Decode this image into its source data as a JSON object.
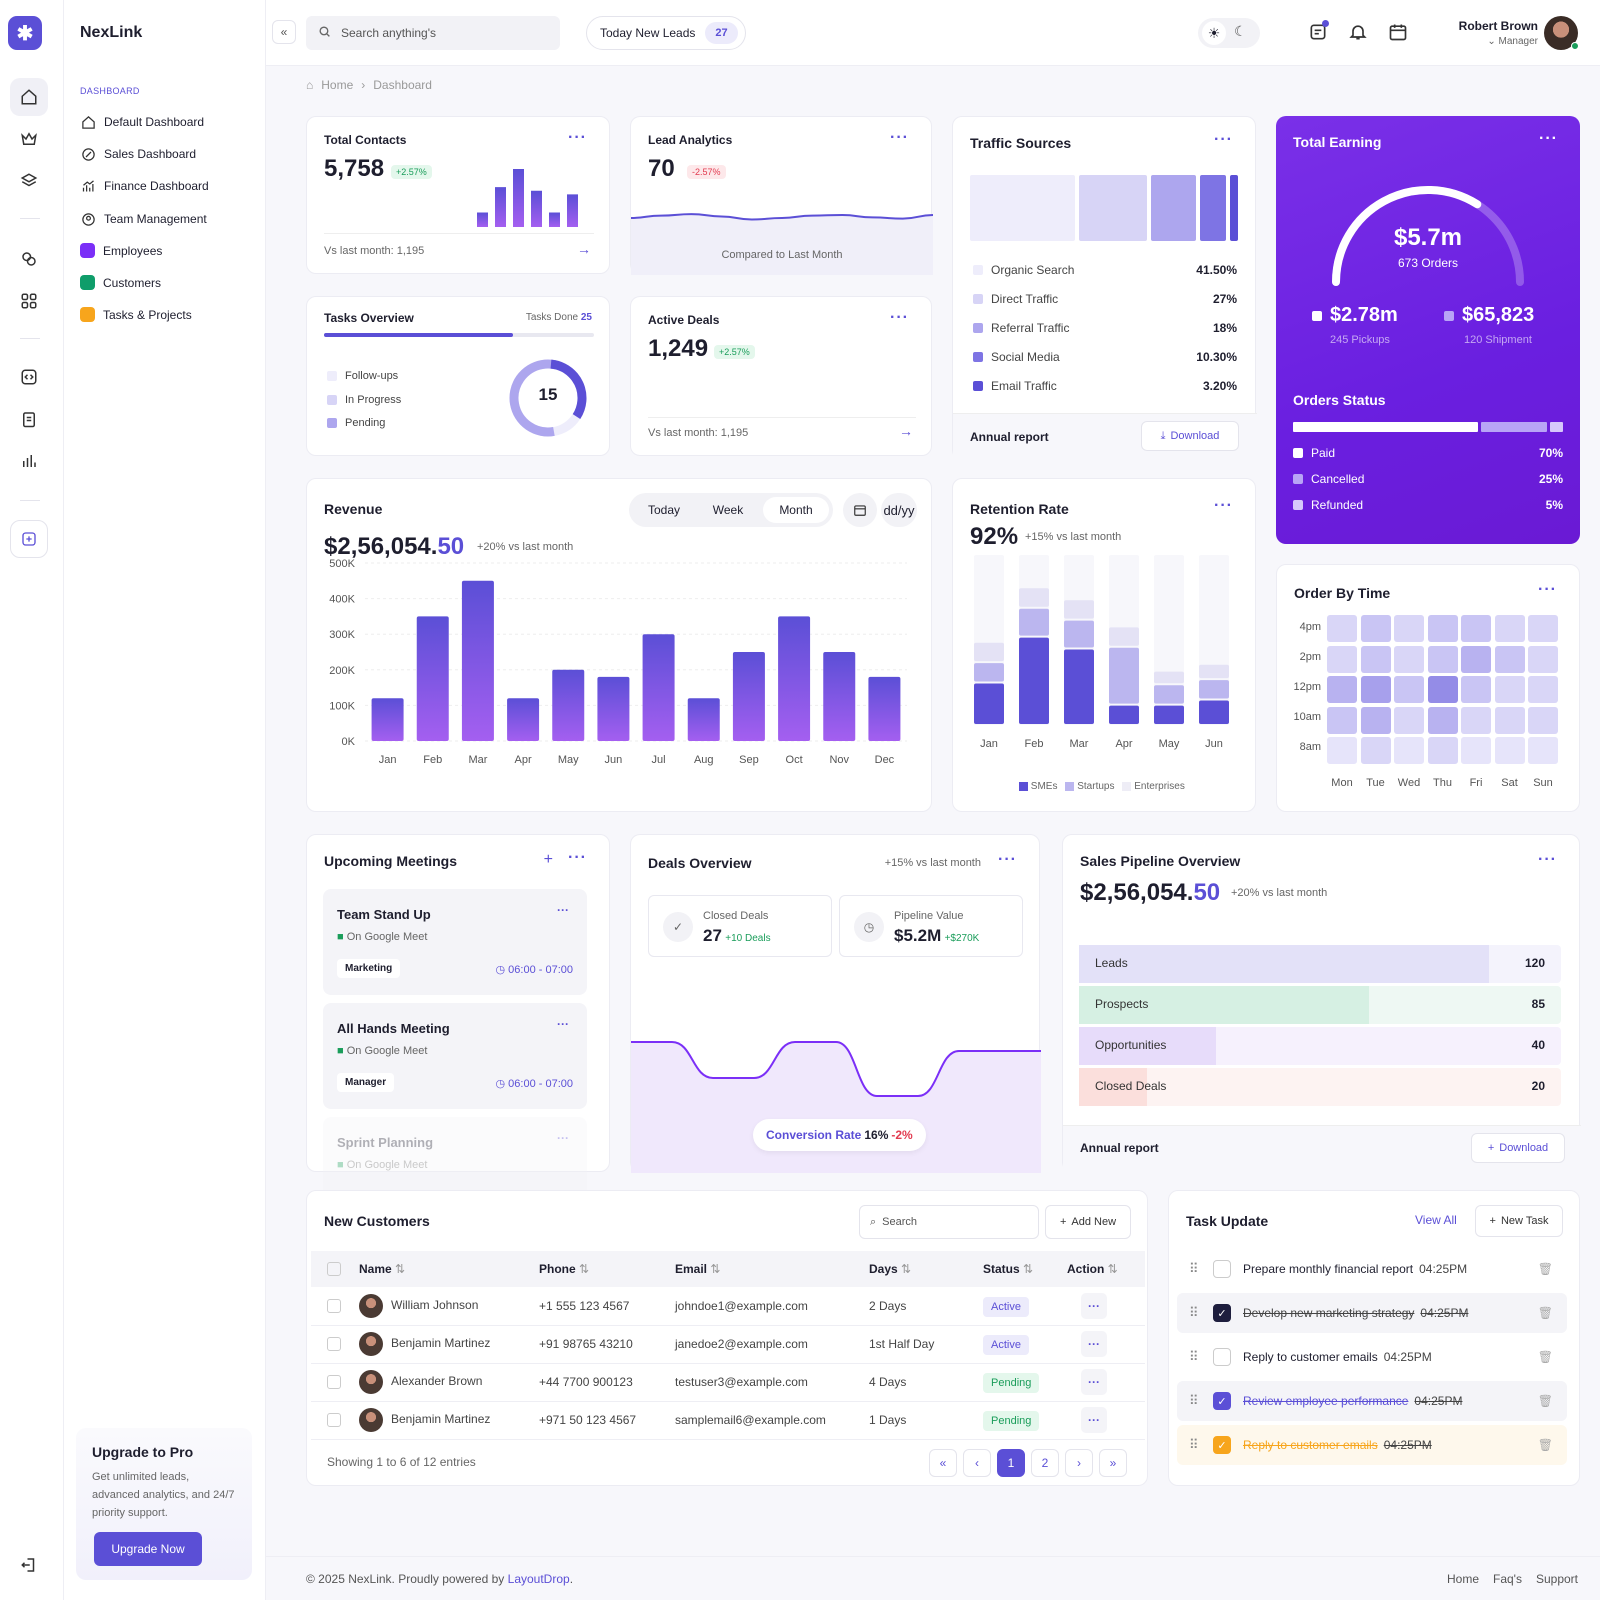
{
  "app": {
    "name": "NexLink"
  },
  "sidebar": {
    "section": "DASHBOARD",
    "items": [
      {
        "label": "Default Dashboard",
        "icon": "home-icon"
      },
      {
        "label": "Sales Dashboard",
        "icon": "percent-icon"
      },
      {
        "label": "Finance Dashboard",
        "icon": "chart-growth-icon"
      },
      {
        "label": "Team Management",
        "icon": "user-circle-icon"
      },
      {
        "label": "Employees",
        "color": "#7b2ff7"
      },
      {
        "label": "Customers",
        "color": "#0f9d6a"
      },
      {
        "label": "Tasks & Projects",
        "color": "#f7a51c"
      }
    ],
    "upgrade": {
      "title": "Upgrade to Pro",
      "text": "Get unlimited leads, advanced analytics, and 24/7 priority support.",
      "button": "Upgrade Now"
    }
  },
  "header": {
    "search_placeholder": "Search anything's",
    "leads_label": "Today New Leads",
    "leads_count": "27",
    "user_name": "Robert Brown",
    "user_role": "Manager"
  },
  "breadcrumb": {
    "home": "Home",
    "current": "Dashboard"
  },
  "total_contacts": {
    "title": "Total Contacts",
    "value": "5,758",
    "change": "+2.57%",
    "footer": "Vs last month: 1,195",
    "bars": [
      4,
      11,
      16,
      10,
      4,
      9
    ]
  },
  "lead_analytics": {
    "title": "Lead Analytics",
    "value": "70",
    "change": "-2.57%",
    "footer": "Compared to Last Month"
  },
  "tasks_overview": {
    "title": "Tasks Overview",
    "done_label": "Tasks Done",
    "done_count": "25",
    "progress": 0.7,
    "legend": [
      "Follow-ups",
      "In Progress",
      "Pending"
    ],
    "center": "15"
  },
  "active_deals": {
    "title": "Active Deals",
    "value": "1,249",
    "change": "+2.57%",
    "footer": "Vs last month: 1,195"
  },
  "traffic_sources": {
    "title": "Traffic Sources",
    "items": [
      {
        "label": "Organic Search",
        "value": "41.50%",
        "pct": 41.5,
        "color": "#eeedfb"
      },
      {
        "label": "Direct Traffic",
        "value": "27%",
        "pct": 27,
        "color": "#d7d4f6"
      },
      {
        "label": "Referral Traffic",
        "value": "18%",
        "pct": 18,
        "color": "#ada6ee"
      },
      {
        "label": "Social Media",
        "value": "10.30%",
        "pct": 10.3,
        "color": "#7e74e4"
      },
      {
        "label": "Email Traffic",
        "value": "3.20%",
        "pct": 3.2,
        "color": "#5b4fd6"
      }
    ],
    "footer": "Annual report",
    "download": "Download"
  },
  "total_earning": {
    "title": "Total Earning",
    "value": "$5.7m",
    "orders": "673 Orders",
    "gauge": 0.68,
    "pickups_value": "$2.78m",
    "pickups_label": "245 Pickups",
    "shipment_value": "$65,823",
    "shipment_label": "120 Shipment",
    "status_title": "Orders Status",
    "status": [
      {
        "label": "Paid",
        "value": "70%",
        "pct": 70
      },
      {
        "label": "Cancelled",
        "value": "25%",
        "pct": 25
      },
      {
        "label": "Refunded",
        "value": "5%",
        "pct": 5
      }
    ]
  },
  "revenue": {
    "title": "Revenue",
    "value_main": "$2,56,054.",
    "value_dec": "50",
    "change": "+20% vs last month",
    "tabs": [
      "Today",
      "Week",
      "Month"
    ],
    "active_tab": "Month",
    "date_label": "dd/yy"
  },
  "retention": {
    "title": "Retention Rate",
    "value": "92%",
    "change": "+15% vs last month",
    "legend": [
      "SMEs",
      "Startups",
      "Enterprises"
    ]
  },
  "order_time": {
    "title": "Order By Time",
    "rows": [
      "4pm",
      "2pm",
      "12pm",
      "10am",
      "8am"
    ],
    "cols": [
      "Mon",
      "Tue",
      "Wed",
      "Thu",
      "Fri",
      "Sat",
      "Sun"
    ],
    "values": [
      [
        2,
        3,
        2,
        3,
        3,
        2,
        2
      ],
      [
        2,
        3,
        2,
        3,
        4,
        3,
        2
      ],
      [
        4,
        5,
        3,
        6,
        3,
        2,
        2
      ],
      [
        3,
        4,
        2,
        4,
        2,
        2,
        2
      ],
      [
        1,
        2,
        1,
        2,
        1,
        1,
        1
      ]
    ]
  },
  "meetings": {
    "title": "Upcoming Meetings",
    "items": [
      {
        "title": "Team Stand Up",
        "platform": "On Google Meet",
        "tag": "Marketing",
        "time": "06:00 - 07:00"
      },
      {
        "title": "All Hands Meeting",
        "platform": "On Google Meet",
        "tag": "Manager",
        "time": "06:00 - 07:00"
      },
      {
        "title": "Sprint Planning",
        "platform": "On Google Meet"
      }
    ]
  },
  "deals_overview": {
    "title": "Deals Overview",
    "change": "+15% vs last month",
    "closed_label": "Closed Deals",
    "closed_value": "27",
    "closed_sub": "+10 Deals",
    "pipeline_label": "Pipeline Value",
    "pipeline_value": "$5.2M",
    "pipeline_sub": "+$270K",
    "conversion_label": "Conversion Rate",
    "conversion_value": "16%",
    "conversion_change": "-2%"
  },
  "sales_pipeline": {
    "title": "Sales Pipeline Overview",
    "value_main": "$2,56,054.",
    "value_dec": "50",
    "change": "+20% vs last month",
    "stages": [
      {
        "label": "Leads",
        "value": "120",
        "count": 120,
        "fill": "#e3e1f8",
        "bg": "#f4f3fc"
      },
      {
        "label": "Prospects",
        "value": "85",
        "count": 85,
        "fill": "#d6f0e3",
        "bg": "#eef8f3"
      },
      {
        "label": "Opportunities",
        "value": "40",
        "count": 40,
        "fill": "#e7dcfa",
        "bg": "#f6f1fd"
      },
      {
        "label": "Closed Deals",
        "value": "20",
        "count": 20,
        "fill": "#fbdfdc",
        "bg": "#fdf3f2"
      }
    ],
    "footer": "Annual report",
    "download": "Download"
  },
  "customers": {
    "title": "New Customers",
    "search_placeholder": "Search",
    "add_label": "Add New",
    "columns": [
      "Name",
      "Phone",
      "Email",
      "Days",
      "Status",
      "Action"
    ],
    "rows": [
      {
        "name": "William Johnson",
        "phone": "+1 555 123 4567",
        "email": "johndoe1@example.com",
        "days": "2 Days",
        "status": "Active"
      },
      {
        "name": "Benjamin Martinez",
        "phone": "+91 98765 43210",
        "email": "janedoe2@example.com",
        "days": "1st Half Day",
        "status": "Active"
      },
      {
        "name": "Alexander Brown",
        "phone": "+44 7700 900123",
        "email": "testuser3@example.com",
        "days": "4 Days",
        "status": "Pending"
      },
      {
        "name": "Benjamin Martinez",
        "phone": "+971 50 123 4567",
        "email": "samplemail6@example.com",
        "days": "1 Days",
        "status": "Pending"
      }
    ],
    "showing": "Showing 1 to 6 of 12 entries",
    "pages": [
      "1",
      "2"
    ]
  },
  "tasks": {
    "title": "Task Update",
    "view_all": "View All",
    "new_task": "New Task",
    "items": [
      {
        "text": "Prepare monthly financial report",
        "time": "04:25PM",
        "done": false,
        "style": "plain"
      },
      {
        "text": "Develop new marketing strategy",
        "time": "04:25PM",
        "done": true,
        "style": "dark"
      },
      {
        "text": "Reply to customer emails",
        "time": "04:25PM",
        "done": false,
        "style": "plain"
      },
      {
        "text": "Review employee performance",
        "time": "04:25PM",
        "done": true,
        "style": "purple"
      },
      {
        "text": "Reply to customer emails",
        "time": "04:25PM",
        "done": true,
        "style": "orange"
      }
    ]
  },
  "footer": {
    "copyright": "© 2025 NexLink. Proudly powered by",
    "link": "LayoutDrop",
    "links": [
      "Home",
      "Faq's",
      "Support"
    ]
  },
  "chart_data": [
    {
      "type": "bar",
      "title": "Revenue",
      "categories": [
        "Jan",
        "Feb",
        "Mar",
        "Apr",
        "May",
        "Jun",
        "Jul",
        "Aug",
        "Sep",
        "Oct",
        "Nov",
        "Dec"
      ],
      "values": [
        120000,
        350000,
        450000,
        120000,
        200000,
        180000,
        300000,
        120000,
        250000,
        350000,
        250000,
        180000
      ],
      "ylim": [
        0,
        500000
      ],
      "yticks": [
        "0K",
        "100K",
        "200K",
        "300K",
        "400K",
        "500K"
      ],
      "grid": true
    },
    {
      "type": "bar",
      "title": "Retention Rate",
      "stacked": true,
      "categories": [
        "Jan",
        "Feb",
        "Mar",
        "Apr",
        "May",
        "Jun"
      ],
      "series": [
        {
          "name": "SMEs",
          "values": [
            25,
            52,
            45,
            12,
            12,
            15
          ]
        },
        {
          "name": "Startups",
          "values": [
            12,
            17,
            17,
            34,
            12,
            12
          ]
        },
        {
          "name": "Enterprises",
          "values": [
            12,
            12,
            12,
            12,
            8,
            9
          ]
        }
      ],
      "ymax": 100
    },
    {
      "type": "line",
      "title": "Lead Analytics",
      "x": [
        0,
        1,
        2,
        3,
        4,
        5,
        6,
        7,
        8,
        9,
        10
      ],
      "values": [
        50,
        58,
        63,
        55,
        45,
        50,
        58,
        60,
        52,
        48,
        60
      ]
    },
    {
      "type": "line",
      "title": "Deals Overview",
      "x": [
        0,
        1,
        2,
        3,
        4,
        5,
        6,
        7,
        8,
        9,
        10
      ],
      "values": [
        70,
        70,
        30,
        30,
        70,
        70,
        10,
        10,
        60,
        60,
        60
      ]
    }
  ]
}
